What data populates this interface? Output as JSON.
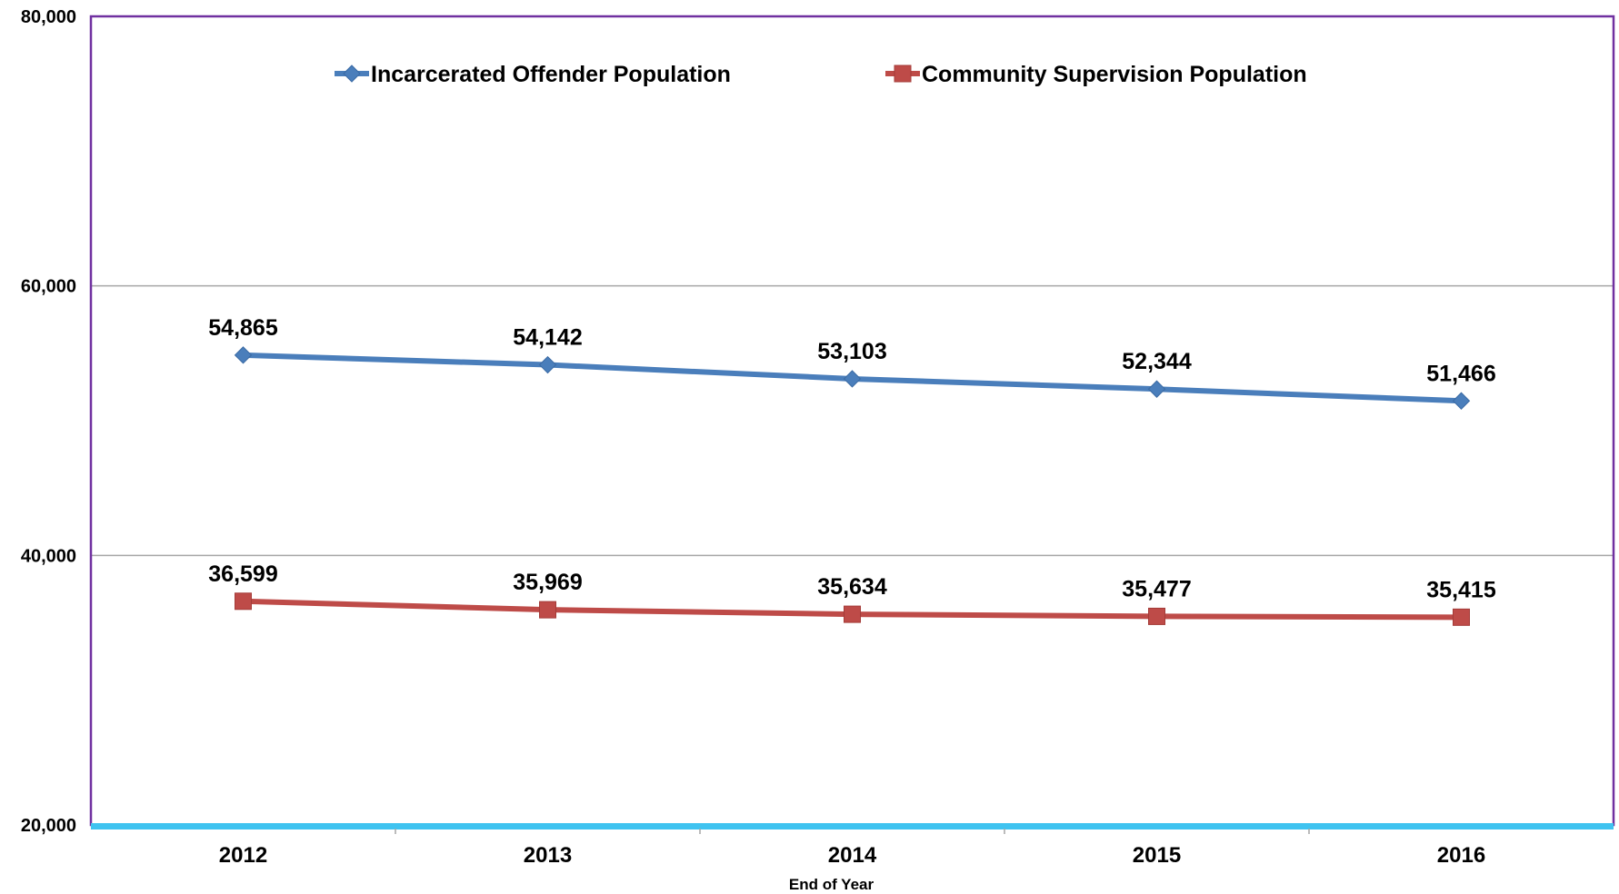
{
  "chart_data": {
    "type": "line",
    "title": "",
    "xlabel": "End of Year",
    "ylabel": "",
    "categories": [
      "2012",
      "2013",
      "2014",
      "2015",
      "2016"
    ],
    "ylim": [
      20000,
      80000
    ],
    "yticks": [
      20000,
      40000,
      60000,
      80000
    ],
    "ytick_labels": [
      "20,000",
      "40,000",
      "60,000",
      "80,000"
    ],
    "grid": "horizontal",
    "legend_position": "top",
    "series": [
      {
        "name": "Incarcerated Offender Population",
        "values": [
          54865,
          54142,
          53103,
          52344,
          51466
        ],
        "labels": [
          "54,865",
          "54,142",
          "53,103",
          "52,344",
          "51,466"
        ],
        "color": "#4a7ebb",
        "marker": "diamond"
      },
      {
        "name": "Community Supervision Population",
        "values": [
          36599,
          35969,
          35634,
          35477,
          35415
        ],
        "labels": [
          "36,599",
          "35,969",
          "35,634",
          "35,477",
          "35,415"
        ],
        "color": "#be4b48",
        "marker": "square"
      }
    ],
    "frame_color": "#7030a0",
    "baseline_color": "#3fc3f0",
    "gridline_color": "#a6a6a6"
  }
}
